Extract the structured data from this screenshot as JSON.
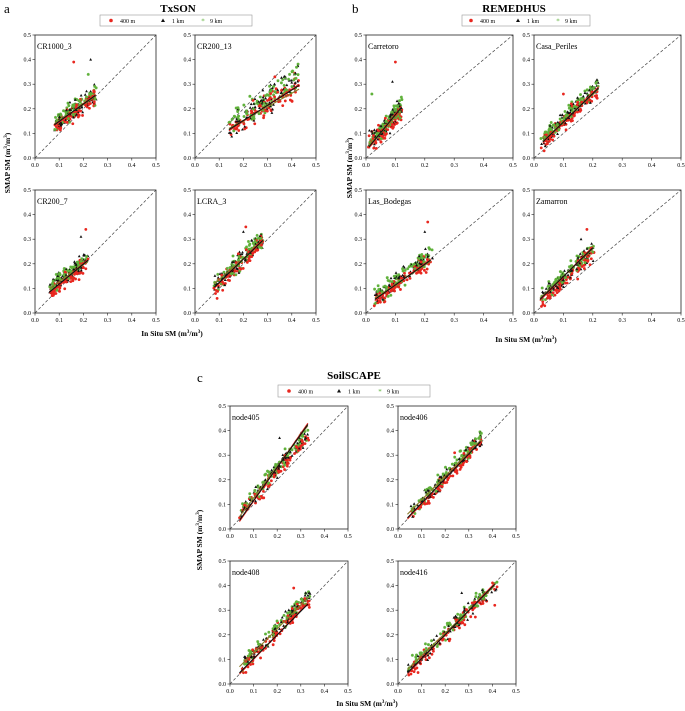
{
  "figure": {
    "colors": {
      "red": "#e8271f",
      "black": "#111111",
      "green": "#5fb13a",
      "olive": "#8a7a2a"
    },
    "axes": {
      "tick_values": [
        0,
        0.1,
        0.2,
        0.3,
        0.4,
        0.5
      ],
      "tick_labels": [
        "0.0",
        "0.1",
        "0.2",
        "0.3",
        "0.4",
        "0.5"
      ]
    }
  },
  "chart_data": [
    {
      "type": "scatter",
      "panel_letter": "a",
      "title": "TxSON",
      "legend": [
        "400 m",
        "1 km",
        "9 km"
      ],
      "xlabel_main": "In Situ SM (m",
      "ylabel_main": "SMAP SM (m",
      "unit_sup": "3",
      "unit_sep": "/m",
      "unit_end": ")",
      "xlim": [
        0,
        0.5
      ],
      "ylim": [
        0,
        0.5
      ],
      "sites": [
        {
          "name": "CR1000_3",
          "x_range": [
            0.08,
            0.25
          ],
          "slope": 0.75,
          "intercept": 0.07,
          "spread": 0.035,
          "lines": [
            [
              0.08,
              0.25,
              0.13,
              0.26
            ],
            [
              0.08,
              0.25,
              0.14,
              0.25
            ]
          ],
          "outliers": [
            [
              0.16,
              0.39
            ],
            [
              0.23,
              0.4
            ],
            [
              0.22,
              0.34
            ]
          ]
        },
        {
          "name": "CR200_13",
          "x_range": [
            0.14,
            0.43
          ],
          "slope": 0.7,
          "intercept": 0.02,
          "spread": 0.05,
          "lines": [
            [
              0.14,
              0.43,
              0.11,
              0.3
            ],
            [
              0.14,
              0.43,
              0.12,
              0.28
            ]
          ],
          "outliers": [
            [
              0.33,
              0.33
            ],
            [
              0.41,
              0.34
            ]
          ]
        },
        {
          "name": "CR200_7",
          "x_range": [
            0.06,
            0.22
          ],
          "slope": 0.8,
          "intercept": 0.04,
          "spread": 0.03,
          "lines": [
            [
              0.06,
              0.22,
              0.08,
              0.22
            ],
            [
              0.06,
              0.22,
              0.1,
              0.21
            ]
          ],
          "outliers": [
            [
              0.21,
              0.34
            ],
            [
              0.19,
              0.31
            ]
          ]
        },
        {
          "name": "LCRA_3",
          "x_range": [
            0.08,
            0.28
          ],
          "slope": 0.95,
          "intercept": 0.03,
          "spread": 0.035,
          "lines": [
            [
              0.08,
              0.28,
              0.1,
              0.3
            ],
            [
              0.08,
              0.28,
              0.12,
              0.29
            ]
          ],
          "outliers": [
            [
              0.21,
              0.35
            ],
            [
              0.2,
              0.33
            ]
          ]
        }
      ]
    },
    {
      "type": "scatter",
      "panel_letter": "b",
      "title": "REMEDHUS",
      "legend": [
        "400 m",
        "1 km",
        "9 km"
      ],
      "xlabel_main": "In Situ SM (m",
      "ylabel_main": "SMAP SM (m",
      "unit_sup": "3",
      "unit_sep": "/m",
      "unit_end": ")",
      "xlim": [
        0,
        0.5
      ],
      "ylim": [
        0,
        0.5
      ],
      "sites": [
        {
          "name": "Carretoro",
          "x_range": [
            0.01,
            0.12
          ],
          "slope": 1.3,
          "intercept": 0.04,
          "spread": 0.035,
          "lines": [
            [
              0.01,
              0.12,
              0.04,
              0.21
            ],
            [
              0.01,
              0.12,
              0.05,
              0.19
            ]
          ],
          "outliers": [
            [
              0.1,
              0.39
            ],
            [
              0.09,
              0.31
            ],
            [
              0.02,
              0.26
            ]
          ]
        },
        {
          "name": "Casa_Periles",
          "x_range": [
            0.03,
            0.22
          ],
          "slope": 1.2,
          "intercept": 0.03,
          "spread": 0.03,
          "lines": [
            [
              0.03,
              0.22,
              0.06,
              0.29
            ],
            [
              0.03,
              0.22,
              0.07,
              0.28
            ]
          ],
          "outliers": [
            [
              0.1,
              0.26
            ],
            [
              0.21,
              0.31
            ]
          ]
        },
        {
          "name": "Las_Bodegas",
          "x_range": [
            0.03,
            0.22
          ],
          "slope": 0.9,
          "intercept": 0.03,
          "spread": 0.035,
          "lines": [
            [
              0.03,
              0.22,
              0.05,
              0.22
            ],
            [
              0.03,
              0.22,
              0.06,
              0.21
            ]
          ],
          "outliers": [
            [
              0.21,
              0.37
            ],
            [
              0.2,
              0.33
            ]
          ]
        },
        {
          "name": "Zamarron",
          "x_range": [
            0.02,
            0.2
          ],
          "slope": 1.1,
          "intercept": 0.03,
          "spread": 0.03,
          "lines": [
            [
              0.02,
              0.2,
              0.05,
              0.27
            ],
            [
              0.02,
              0.2,
              0.06,
              0.26
            ]
          ],
          "outliers": [
            [
              0.18,
              0.34
            ],
            [
              0.16,
              0.3
            ]
          ]
        }
      ]
    },
    {
      "type": "scatter",
      "panel_letter": "c",
      "title": "SoilSCAPE",
      "legend": [
        "400 m",
        "1 km",
        "9 km"
      ],
      "xlabel_main": "In Situ SM (m",
      "ylabel_main": "SMAP SM (m",
      "unit_sup": "3",
      "unit_sep": "/m",
      "unit_end": ")",
      "xlim": [
        0,
        0.5
      ],
      "ylim": [
        0,
        0.5
      ],
      "sites": [
        {
          "name": "node405",
          "x_range": [
            0.04,
            0.34
          ],
          "slope": 1.1,
          "intercept": 0.02,
          "spread": 0.03,
          "lines": [
            [
              0.04,
              0.33,
              0.03,
              0.43
            ],
            [
              0.04,
              0.33,
              0.05,
              0.42
            ]
          ],
          "outliers": [
            [
              0.33,
              0.37
            ],
            [
              0.21,
              0.37
            ]
          ]
        },
        {
          "name": "node406",
          "x_range": [
            0.04,
            0.36
          ],
          "slope": 1.0,
          "intercept": 0.01,
          "spread": 0.03,
          "lines": [
            [
              0.04,
              0.35,
              0.04,
              0.36
            ],
            [
              0.04,
              0.35,
              0.06,
              0.36
            ]
          ],
          "outliers": [
            [
              0.24,
              0.31
            ],
            [
              0.35,
              0.37
            ]
          ]
        },
        {
          "name": "node408",
          "x_range": [
            0.04,
            0.34
          ],
          "slope": 1.0,
          "intercept": 0.02,
          "spread": 0.03,
          "lines": [
            [
              0.04,
              0.33,
              0.04,
              0.33
            ],
            [
              0.04,
              0.33,
              0.07,
              0.35
            ]
          ],
          "outliers": [
            [
              0.27,
              0.39
            ],
            [
              0.33,
              0.36
            ]
          ]
        },
        {
          "name": "node416",
          "x_range": [
            0.04,
            0.42
          ],
          "slope": 0.95,
          "intercept": 0.01,
          "spread": 0.03,
          "lines": [
            [
              0.04,
              0.41,
              0.04,
              0.41
            ],
            [
              0.04,
              0.41,
              0.06,
              0.4
            ]
          ],
          "outliers": [
            [
              0.41,
              0.32
            ],
            [
              0.27,
              0.37
            ]
          ]
        }
      ]
    }
  ]
}
